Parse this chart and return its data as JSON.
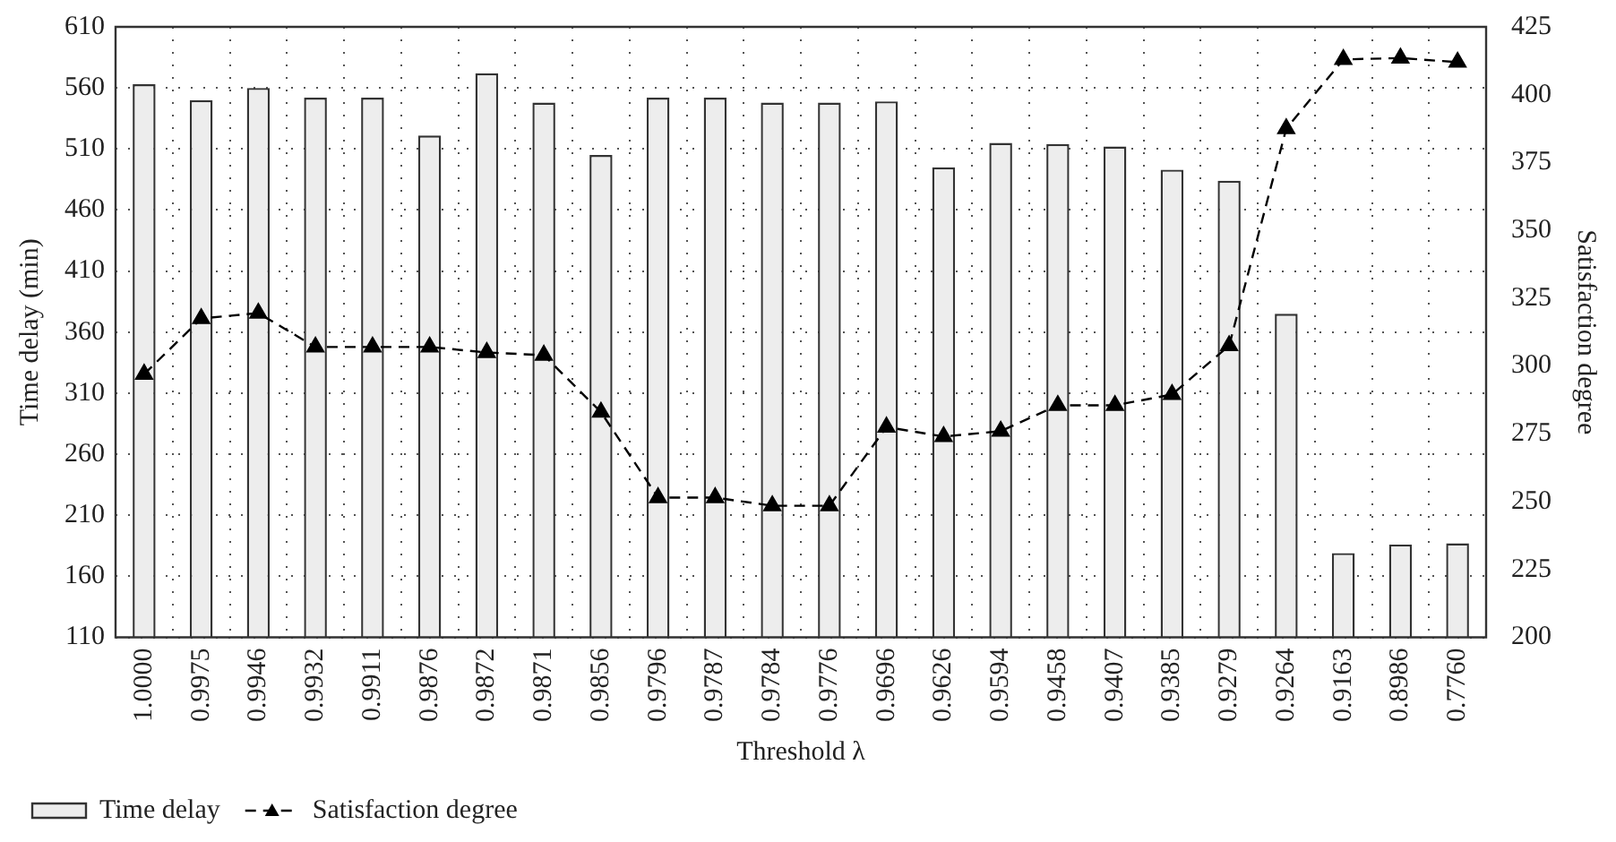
{
  "chart_data": {
    "type": "bar",
    "xlabel": "Threshold λ",
    "ylabel": "Time delay (min)",
    "y2label": "Satisfaction degree",
    "categories": [
      "1.0000",
      "0.9975",
      "0.9946",
      "0.9932",
      "0.9911",
      "0.9876",
      "0.9872",
      "0.9871",
      "0.9856",
      "0.9796",
      "0.9787",
      "0.9784",
      "0.9776",
      "0.9696",
      "0.9626",
      "0.9594",
      "0.9458",
      "0.9407",
      "0.9385",
      "0.9279",
      "0.9264",
      "0.9163",
      "0.8986",
      "0.7760"
    ],
    "series": [
      {
        "name": "Time delay",
        "color": "#ededed",
        "values": [
          563,
          550,
          560,
          552,
          552,
          521,
          572,
          548,
          505,
          552,
          552,
          548,
          548,
          549,
          495,
          515,
          514,
          512,
          493,
          484,
          375,
          179,
          186,
          187
        ]
      },
      {
        "name": "Satisfaction degree",
        "type": "line",
        "axis": "y2",
        "color": "#000000",
        "marker": "triangle",
        "line_style": "dashed",
        "values": [
          297,
          317.5,
          319.5,
          307,
          307,
          307,
          305,
          304,
          283,
          251.5,
          251.5,
          248.5,
          248.5,
          277.5,
          274,
          276,
          285.5,
          285.5,
          289.5,
          307.5,
          387.5,
          413,
          413.5,
          412
        ]
      }
    ],
    "ylim": [
      110,
      610
    ],
    "yticks": [
      110,
      160,
      210,
      260,
      310,
      360,
      410,
      460,
      510,
      560,
      610
    ],
    "y2lim": [
      200,
      425
    ],
    "y2ticks": [
      200,
      225,
      250,
      275,
      300,
      325,
      350,
      375,
      400,
      425
    ],
    "grid": true,
    "legend": "bottom left"
  }
}
